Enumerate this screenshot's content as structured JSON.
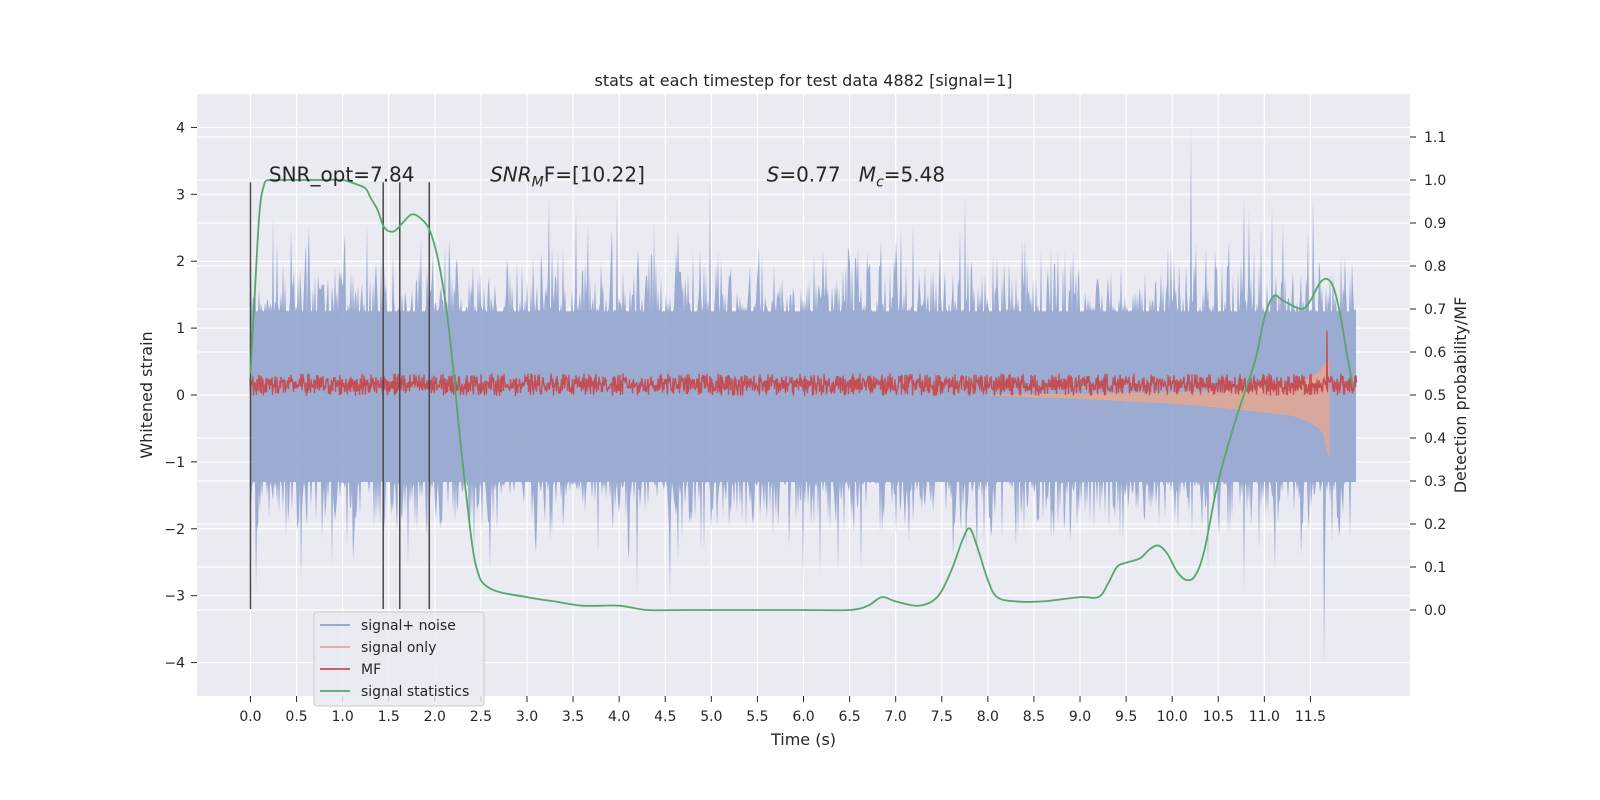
{
  "chart_data": {
    "type": "line",
    "title": "stats at each timestep for test data 4882 [signal=1]",
    "xlabel": "Time (s)",
    "ylabel": "Whitened strain",
    "ylabel_right": "Detection probability/MF",
    "xlim": [
      -0.58,
      12.58
    ],
    "ylim": [
      -4.5,
      4.5
    ],
    "ylim_right": [
      -0.2,
      1.2
    ],
    "x_ticks": [
      0.0,
      0.5,
      1.0,
      1.5,
      2.0,
      2.5,
      3.0,
      3.5,
      4.0,
      4.5,
      5.0,
      5.5,
      6.0,
      6.5,
      7.0,
      7.5,
      8.0,
      8.5,
      9.0,
      9.5,
      10.0,
      10.5,
      11.0,
      11.5
    ],
    "x_tick_labels": [
      "0.0",
      "0.5",
      "1.0",
      "1.5",
      "2.0",
      "2.5",
      "3.0",
      "3.5",
      "4.0",
      "4.5",
      "5.0",
      "5.5",
      "6.0",
      "6.5",
      "7.0",
      "7.5",
      "8.0",
      "8.5",
      "9.0",
      "9.5",
      "10.0",
      "10.5",
      "11.0",
      "11.5"
    ],
    "y_ticks": [
      -4,
      -3,
      -2,
      -1,
      0,
      1,
      2,
      3,
      4
    ],
    "y_tick_labels": [
      "−4",
      "−3",
      "−2",
      "−1",
      "0",
      "1",
      "2",
      "3",
      "4"
    ],
    "y_right_ticks": [
      0.0,
      0.1,
      0.2,
      0.3,
      0.4,
      0.5,
      0.6,
      0.7,
      0.8,
      0.9,
      1.0,
      1.1
    ],
    "y_right_tick_labels": [
      "0.0",
      "0.1",
      "0.2",
      "0.3",
      "0.4",
      "0.5",
      "0.6",
      "0.7",
      "0.8",
      "0.9",
      "1.0",
      "1.1"
    ],
    "grid": true,
    "legend_position": "bottom-left",
    "noise": {
      "name": "signal+ noise",
      "color": "#8da0cb",
      "t_range": [
        0.0,
        11.99
      ],
      "sigma": 1.0,
      "peak_max": 4.05,
      "peak_min": -4.08
    },
    "signal_only": {
      "name": "signal only",
      "color": "#e9a68d",
      "envelope_t": [
        8.0,
        9.0,
        10.0,
        10.5,
        11.0,
        11.3,
        11.5,
        11.6,
        11.65,
        11.7
      ],
      "envelope_upper": [
        0.0,
        0.01,
        0.03,
        0.05,
        0.1,
        0.15,
        0.24,
        0.35,
        0.45,
        0.5
      ],
      "envelope_lower": [
        0.0,
        -0.05,
        -0.12,
        -0.18,
        -0.25,
        -0.3,
        -0.4,
        -0.5,
        -0.6,
        -0.9
      ]
    },
    "mf": {
      "name": "MF",
      "color": "#c44e52",
      "t_range": [
        0.0,
        11.99
      ],
      "baseline": 0.53,
      "spike_t": 11.68,
      "spike_value": 0.65
    },
    "signal_statistics": {
      "name": "signal statistics",
      "color": "#55a868",
      "t": [
        0.0,
        0.05,
        0.1,
        0.15,
        0.2,
        0.3,
        0.5,
        0.8,
        1.0,
        1.15,
        1.25,
        1.3,
        1.38,
        1.45,
        1.55,
        1.65,
        1.75,
        1.85,
        1.95,
        2.05,
        2.15,
        2.25,
        2.35,
        2.45,
        2.6,
        3.0,
        3.3,
        3.6,
        4.0,
        4.3,
        4.7,
        5.0,
        5.5,
        6.0,
        6.5,
        6.7,
        6.85,
        7.0,
        7.25,
        7.45,
        7.6,
        7.72,
        7.8,
        7.88,
        8.0,
        8.1,
        8.3,
        8.6,
        9.0,
        9.2,
        9.3,
        9.4,
        9.5,
        9.65,
        9.75,
        9.85,
        9.95,
        10.05,
        10.15,
        10.25,
        10.35,
        10.5,
        10.7,
        10.9,
        11.0,
        11.1,
        11.2,
        11.4,
        11.5,
        11.6,
        11.68,
        11.75,
        11.82,
        11.9,
        11.96
      ],
      "values": [
        0.55,
        0.75,
        0.93,
        0.99,
        1.0,
        1.0,
        1.0,
        1.0,
        1.0,
        0.99,
        0.98,
        0.96,
        0.93,
        0.89,
        0.88,
        0.9,
        0.92,
        0.91,
        0.88,
        0.8,
        0.66,
        0.45,
        0.25,
        0.1,
        0.05,
        0.03,
        0.02,
        0.01,
        0.01,
        0.0,
        0.0,
        0.0,
        0.0,
        0.0,
        0.0,
        0.01,
        0.03,
        0.02,
        0.01,
        0.03,
        0.09,
        0.16,
        0.19,
        0.15,
        0.07,
        0.03,
        0.02,
        0.02,
        0.03,
        0.03,
        0.06,
        0.1,
        0.11,
        0.12,
        0.14,
        0.15,
        0.13,
        0.09,
        0.07,
        0.08,
        0.14,
        0.3,
        0.45,
        0.58,
        0.68,
        0.73,
        0.72,
        0.7,
        0.72,
        0.76,
        0.77,
        0.75,
        0.69,
        0.59,
        0.52
      ]
    },
    "vertical_lines": [
      {
        "t": 0.0,
        "y_top": 3.18,
        "y_bottom": -3.2
      },
      {
        "t": 1.44,
        "y_top": 3.18,
        "y_bottom": -3.2
      },
      {
        "t": 1.62,
        "y_top": 3.18,
        "y_bottom": -3.2
      },
      {
        "t": 1.94,
        "y_top": 3.18,
        "y_bottom": -3.2
      }
    ],
    "annotations": [
      {
        "id": "snr-opt",
        "text": "SNR_opt=7.84",
        "x": 0.2,
        "y": 3.3
      },
      {
        "id": "snr-mf",
        "text": "SNR",
        "sub": "M",
        "tail": "F=[10.22]",
        "x": 2.6,
        "y": 3.3,
        "italic": true
      },
      {
        "id": "s-value",
        "text": "S",
        "tail": "=0.77",
        "x": 5.6,
        "y": 3.3,
        "italic": true
      },
      {
        "id": "mc-value",
        "text": "M",
        "sub": "c",
        "tail": "=5.48",
        "x": 6.6,
        "y": 3.3,
        "italic": true
      }
    ],
    "colors": {
      "plot_background": "#eaeaf2",
      "grid": "#ffffff",
      "vertical_line": "#4a4a4a"
    }
  }
}
